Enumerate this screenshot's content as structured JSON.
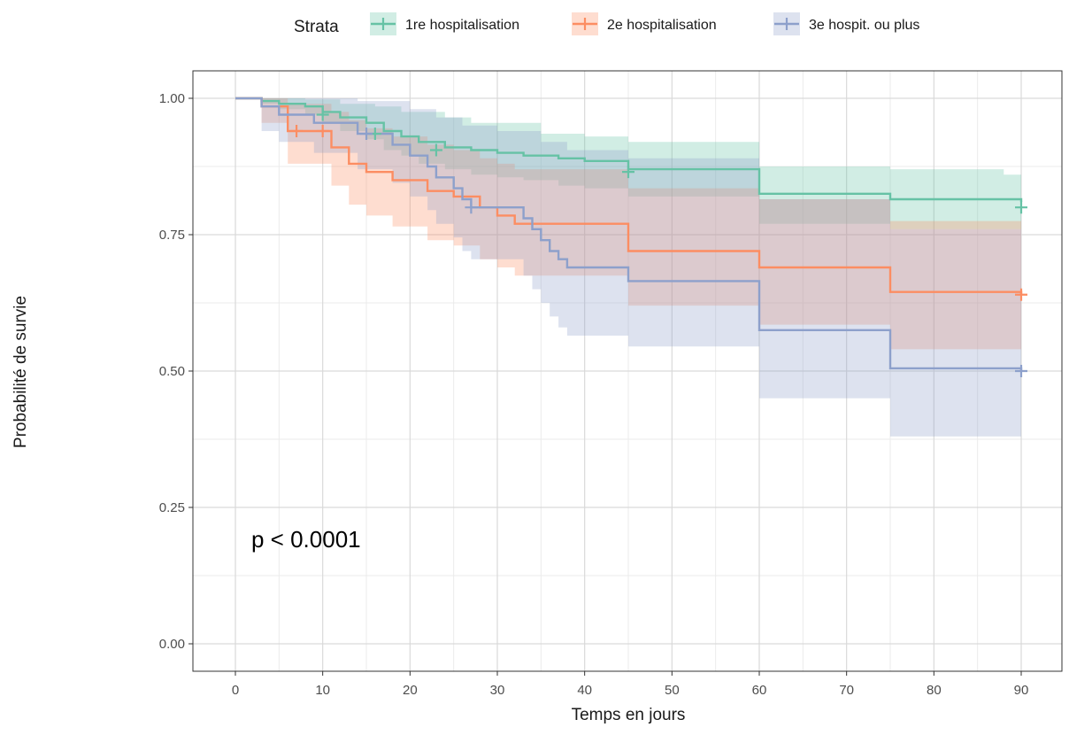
{
  "chart_data": {
    "type": "line",
    "subtype": "kaplan-meier",
    "xlabel": "Temps en jours",
    "ylabel": "Probabilité de survie",
    "xlim": [
      0,
      90
    ],
    "ylim": [
      0,
      1
    ],
    "x_ticks": [
      0,
      10,
      20,
      30,
      40,
      50,
      60,
      70,
      80,
      90
    ],
    "y_ticks": [
      0,
      0.25,
      0.5,
      0.75,
      1.0
    ],
    "y_tick_labels": [
      "0.00",
      "0.25",
      "0.50",
      "0.75",
      "1.00"
    ],
    "grid": true,
    "legend": {
      "title": "Strata",
      "position": "top"
    },
    "annotation": "p < 0.0001",
    "series": [
      {
        "name": "1re hospitalisation",
        "color": "#66c2a5",
        "steps": [
          [
            0,
            1.0
          ],
          [
            3,
            0.995
          ],
          [
            5,
            0.99
          ],
          [
            8,
            0.985
          ],
          [
            10,
            0.975
          ],
          [
            12,
            0.965
          ],
          [
            15,
            0.955
          ],
          [
            17,
            0.94
          ],
          [
            19,
            0.93
          ],
          [
            21,
            0.92
          ],
          [
            24,
            0.91
          ],
          [
            27,
            0.905
          ],
          [
            30,
            0.9
          ],
          [
            33,
            0.895
          ],
          [
            37,
            0.89
          ],
          [
            40,
            0.885
          ],
          [
            45,
            0.87
          ],
          [
            60,
            0.825
          ],
          [
            75,
            0.815
          ],
          [
            90,
            0.81
          ]
        ],
        "ci_upper": [
          [
            0,
            1.0
          ],
          [
            3,
            1.0
          ],
          [
            8,
            0.998
          ],
          [
            12,
            0.99
          ],
          [
            16,
            0.985
          ],
          [
            19,
            0.975
          ],
          [
            24,
            0.965
          ],
          [
            27,
            0.955
          ],
          [
            35,
            0.935
          ],
          [
            40,
            0.93
          ],
          [
            45,
            0.92
          ],
          [
            60,
            0.875
          ],
          [
            75,
            0.87
          ],
          [
            88,
            0.86
          ],
          [
            90,
            0.86
          ]
        ],
        "ci_lower": [
          [
            0,
            1.0
          ],
          [
            3,
            0.99
          ],
          [
            5,
            0.98
          ],
          [
            8,
            0.97
          ],
          [
            10,
            0.955
          ],
          [
            12,
            0.94
          ],
          [
            15,
            0.925
          ],
          [
            17,
            0.905
          ],
          [
            19,
            0.895
          ],
          [
            21,
            0.88
          ],
          [
            24,
            0.87
          ],
          [
            27,
            0.86
          ],
          [
            30,
            0.855
          ],
          [
            33,
            0.85
          ],
          [
            37,
            0.84
          ],
          [
            40,
            0.835
          ],
          [
            45,
            0.82
          ],
          [
            60,
            0.77
          ],
          [
            75,
            0.76
          ],
          [
            90,
            0.75
          ]
        ],
        "censor": [
          [
            10,
            0.97
          ],
          [
            16,
            0.935
          ],
          [
            23,
            0.905
          ],
          [
            45,
            0.865
          ],
          [
            90,
            0.8
          ]
        ]
      },
      {
        "name": "2e hospitalisation",
        "color": "#fc8d62",
        "steps": [
          [
            0,
            1.0
          ],
          [
            3,
            0.985
          ],
          [
            6,
            0.94
          ],
          [
            11,
            0.91
          ],
          [
            13,
            0.88
          ],
          [
            15,
            0.865
          ],
          [
            18,
            0.85
          ],
          [
            22,
            0.83
          ],
          [
            25,
            0.82
          ],
          [
            28,
            0.8
          ],
          [
            30,
            0.785
          ],
          [
            32,
            0.77
          ],
          [
            45,
            0.72
          ],
          [
            60,
            0.69
          ],
          [
            75,
            0.645
          ],
          [
            90,
            0.64
          ]
        ],
        "ci_upper": [
          [
            0,
            1.0
          ],
          [
            3,
            1.0
          ],
          [
            6,
            0.99
          ],
          [
            11,
            0.975
          ],
          [
            13,
            0.96
          ],
          [
            15,
            0.945
          ],
          [
            18,
            0.93
          ],
          [
            22,
            0.915
          ],
          [
            25,
            0.905
          ],
          [
            28,
            0.89
          ],
          [
            30,
            0.88
          ],
          [
            32,
            0.87
          ],
          [
            45,
            0.835
          ],
          [
            60,
            0.815
          ],
          [
            75,
            0.775
          ],
          [
            90,
            0.77
          ]
        ],
        "ci_lower": [
          [
            0,
            1.0
          ],
          [
            3,
            0.955
          ],
          [
            6,
            0.88
          ],
          [
            11,
            0.84
          ],
          [
            13,
            0.805
          ],
          [
            15,
            0.785
          ],
          [
            18,
            0.765
          ],
          [
            22,
            0.74
          ],
          [
            25,
            0.73
          ],
          [
            28,
            0.705
          ],
          [
            30,
            0.69
          ],
          [
            32,
            0.675
          ],
          [
            45,
            0.62
          ],
          [
            60,
            0.585
          ],
          [
            75,
            0.54
          ],
          [
            90,
            0.535
          ]
        ],
        "censor": [
          [
            7,
            0.94
          ],
          [
            10,
            0.94
          ],
          [
            90,
            0.64
          ]
        ]
      },
      {
        "name": "3e hospit. ou plus",
        "color": "#8da0cb",
        "steps": [
          [
            0,
            1.0
          ],
          [
            3,
            0.985
          ],
          [
            5,
            0.97
          ],
          [
            9,
            0.955
          ],
          [
            14,
            0.935
          ],
          [
            18,
            0.915
          ],
          [
            20,
            0.895
          ],
          [
            22,
            0.875
          ],
          [
            23,
            0.855
          ],
          [
            25,
            0.835
          ],
          [
            26,
            0.815
          ],
          [
            27,
            0.8
          ],
          [
            33,
            0.78
          ],
          [
            34,
            0.76
          ],
          [
            35,
            0.74
          ],
          [
            36,
            0.72
          ],
          [
            37,
            0.705
          ],
          [
            38,
            0.69
          ],
          [
            45,
            0.665
          ],
          [
            60,
            0.575
          ],
          [
            75,
            0.505
          ],
          [
            90,
            0.5
          ]
        ],
        "ci_upper": [
          [
            0,
            1.0
          ],
          [
            3,
            1.0
          ],
          [
            14,
            0.995
          ],
          [
            20,
            0.98
          ],
          [
            23,
            0.965
          ],
          [
            26,
            0.95
          ],
          [
            30,
            0.94
          ],
          [
            35,
            0.92
          ],
          [
            38,
            0.905
          ],
          [
            45,
            0.89
          ],
          [
            60,
            0.815
          ],
          [
            75,
            0.76
          ],
          [
            90,
            0.755
          ]
        ],
        "ci_lower": [
          [
            0,
            1.0
          ],
          [
            3,
            0.94
          ],
          [
            5,
            0.92
          ],
          [
            9,
            0.9
          ],
          [
            14,
            0.87
          ],
          [
            18,
            0.845
          ],
          [
            20,
            0.82
          ],
          [
            22,
            0.795
          ],
          [
            23,
            0.77
          ],
          [
            25,
            0.745
          ],
          [
            26,
            0.72
          ],
          [
            27,
            0.705
          ],
          [
            33,
            0.675
          ],
          [
            34,
            0.65
          ],
          [
            35,
            0.625
          ],
          [
            36,
            0.6
          ],
          [
            37,
            0.58
          ],
          [
            38,
            0.565
          ],
          [
            45,
            0.545
          ],
          [
            60,
            0.45
          ],
          [
            75,
            0.38
          ],
          [
            90,
            0.375
          ]
        ],
        "censor": [
          [
            15,
            0.935
          ],
          [
            27,
            0.8
          ],
          [
            90,
            0.5
          ]
        ]
      }
    ]
  }
}
